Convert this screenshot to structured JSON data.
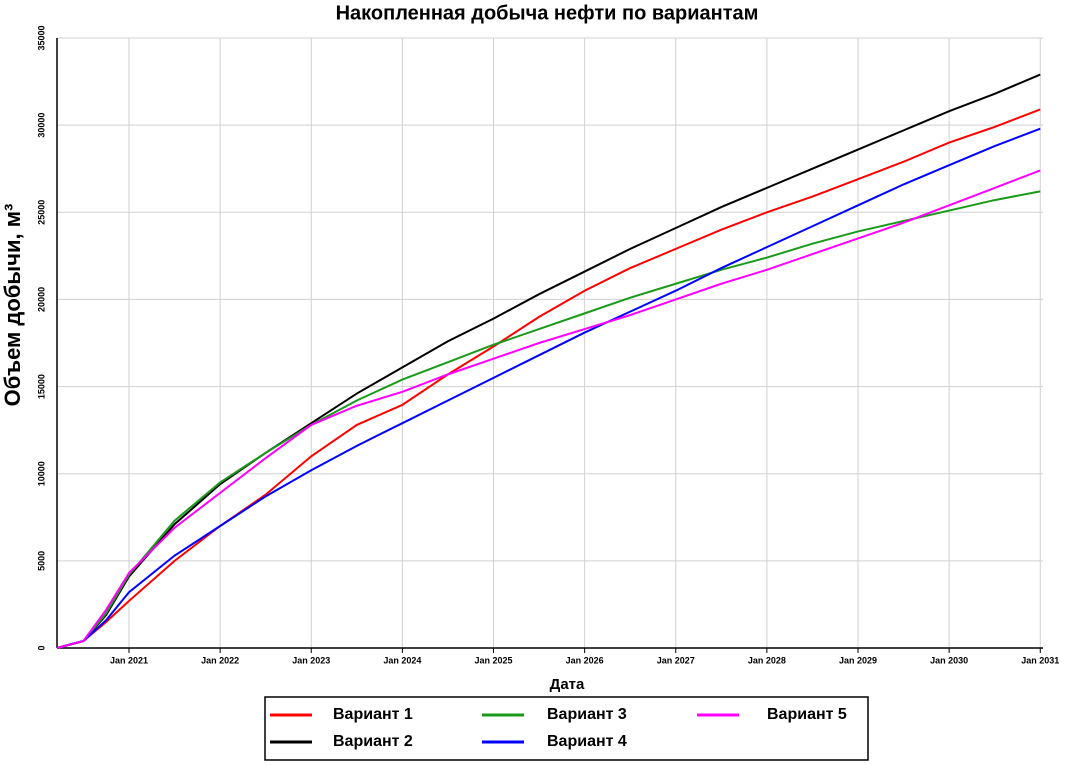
{
  "chart_data": {
    "type": "line",
    "title": "Накопленная добыча нефти по вариантам",
    "x_label": "Дата",
    "y_label": "Объем добычи, м³",
    "x": [
      2020.21,
      2020.5,
      2020.75,
      2021,
      2021.5,
      2022,
      2022.5,
      2023,
      2023.5,
      2024,
      2024.5,
      2025,
      2025.5,
      2026,
      2026.5,
      2027,
      2027.5,
      2028,
      2028.5,
      2029,
      2029.5,
      2030,
      2030.5,
      2031
    ],
    "series": [
      {
        "name": "Вариант 1",
        "color": "#ff0000",
        "values": [
          0,
          400,
          1500,
          2700,
          5000,
          7000,
          8800,
          11000,
          12800,
          13950,
          15700,
          17300,
          19000,
          20500,
          21800,
          22900,
          24000,
          25000,
          25900,
          26900,
          27900,
          29000,
          29900,
          30900
        ]
      },
      {
        "name": "Вариант 2",
        "color": "#000000",
        "values": [
          0,
          400,
          1900,
          4100,
          7100,
          9400,
          11200,
          12900,
          14600,
          16100,
          17600,
          18900,
          20300,
          21600,
          22900,
          24100,
          25300,
          26400,
          27500,
          28600,
          29700,
          30800,
          31800,
          32900
        ]
      },
      {
        "name": "Вариант 3",
        "color": "#1a9a1a",
        "values": [
          0,
          400,
          2000,
          4200,
          7300,
          9500,
          11200,
          12800,
          14200,
          15400,
          16400,
          17400,
          18300,
          19200,
          20100,
          20900,
          21700,
          22400,
          23200,
          23900,
          24500,
          25100,
          25700,
          26200
        ]
      },
      {
        "name": "Вариант 4",
        "color": "#0000ff",
        "values": [
          0,
          400,
          1600,
          3200,
          5300,
          7000,
          8700,
          10200,
          11600,
          12900,
          14200,
          15500,
          16800,
          18100,
          19300,
          20500,
          21800,
          23000,
          24200,
          25400,
          26600,
          27700,
          28800,
          29800
        ]
      },
      {
        "name": "Вариант 5",
        "color": "#ff00ff",
        "values": [
          0,
          400,
          2200,
          4300,
          6900,
          8900,
          10900,
          12800,
          13900,
          14700,
          15700,
          16600,
          17500,
          18300,
          19100,
          20000,
          20900,
          21700,
          22600,
          23500,
          24400,
          25400,
          26400,
          27400
        ]
      }
    ],
    "xlim": [
      2020.21,
      2031.03
    ],
    "xticks": [
      {
        "value": 2021,
        "label": "Jan 2021"
      },
      {
        "value": 2022,
        "label": "Jan 2022"
      },
      {
        "value": 2023,
        "label": "Jan 2023"
      },
      {
        "value": 2024,
        "label": "Jan 2024"
      },
      {
        "value": 2025,
        "label": "Jan 2025"
      },
      {
        "value": 2026,
        "label": "Jan 2026"
      },
      {
        "value": 2027,
        "label": "Jan 2027"
      },
      {
        "value": 2028,
        "label": "Jan 2028"
      },
      {
        "value": 2029,
        "label": "Jan 2029"
      },
      {
        "value": 2030,
        "label": "Jan 2030"
      },
      {
        "value": 2031,
        "label": "Jan 2031"
      }
    ],
    "ylim": [
      0,
      35000
    ],
    "yticks": [
      0,
      5000,
      10000,
      15000,
      20000,
      25000,
      30000,
      35000
    ],
    "grid": true,
    "legend": "bottom"
  }
}
